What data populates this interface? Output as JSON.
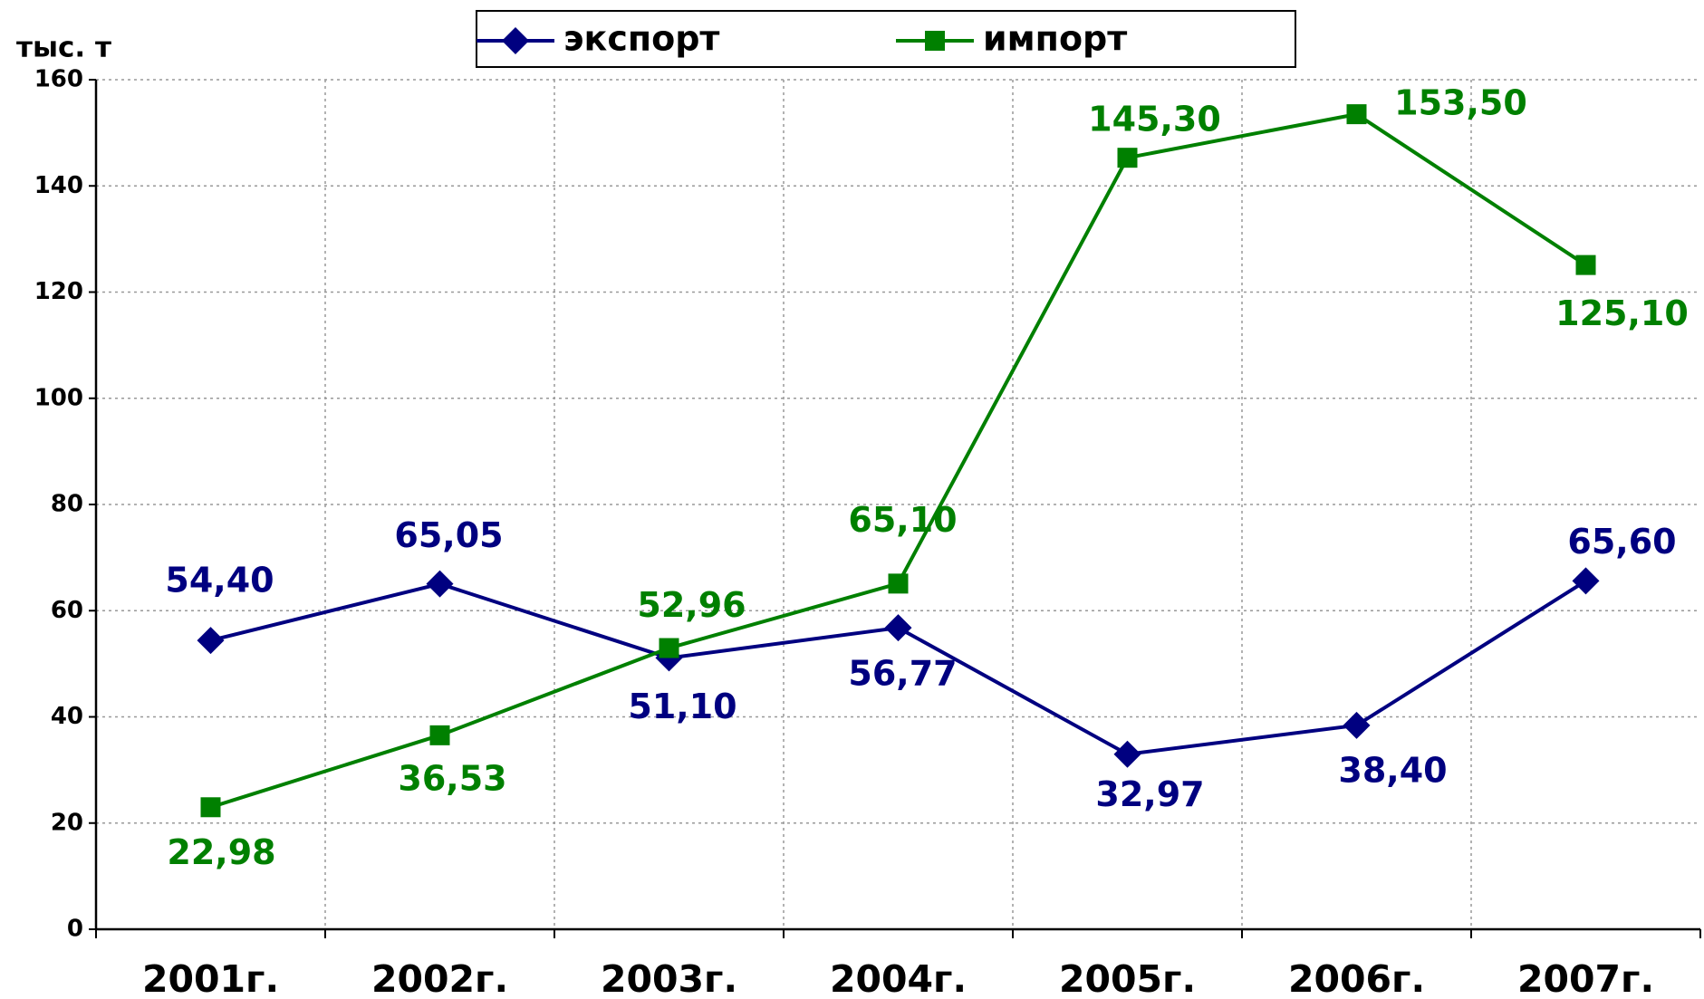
{
  "chart_data": {
    "type": "line",
    "y_label": "тыс. т",
    "categories": [
      "2001г.",
      "2002г.",
      "2003г.",
      "2004г.",
      "2005г.",
      "2006г.",
      "2007г."
    ],
    "series": [
      {
        "name": "экспорт",
        "color": "#000080",
        "marker": "diamond",
        "values": [
          54.4,
          65.05,
          51.1,
          56.77,
          32.97,
          38.4,
          65.6
        ],
        "value_labels": [
          "54,40",
          "65,05",
          "51,10",
          "56,77",
          "32,97",
          "38,40",
          "65,60"
        ]
      },
      {
        "name": "импорт",
        "color": "#008000",
        "marker": "square",
        "values": [
          22.98,
          36.53,
          52.96,
          65.1,
          145.3,
          153.5,
          125.1
        ],
        "value_labels": [
          "22,98",
          "36,53",
          "52,96",
          "65,10",
          "145,30",
          "153,50",
          "125,10"
        ]
      }
    ],
    "ylim": [
      0,
      160
    ],
    "yticks": [
      0,
      20,
      40,
      60,
      80,
      100,
      120,
      140,
      160
    ],
    "grid": true,
    "legend": "top"
  }
}
